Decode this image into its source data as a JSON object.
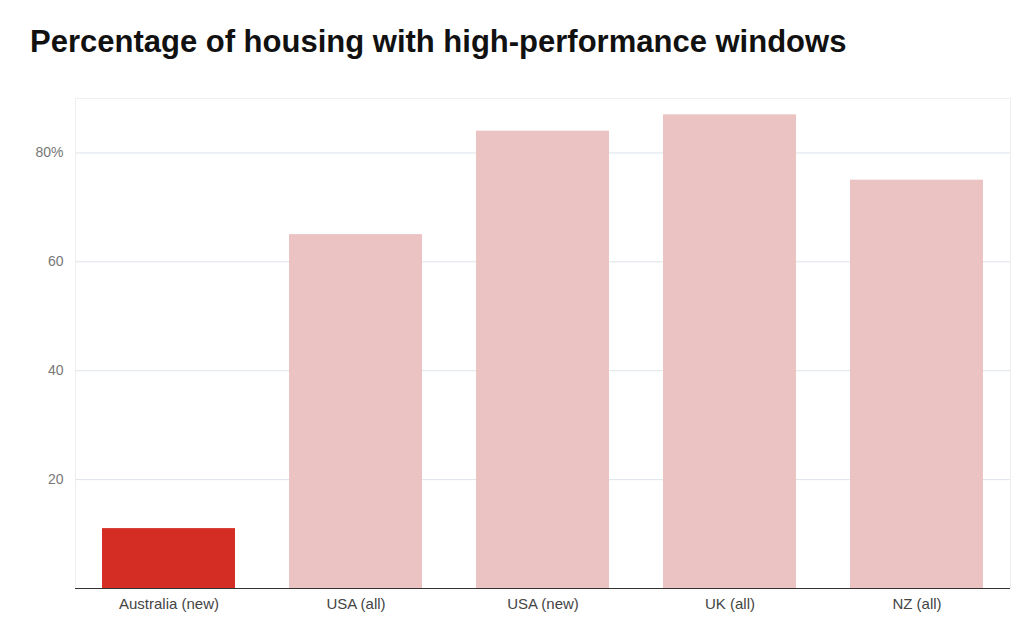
{
  "chart_data": {
    "type": "bar",
    "title": "Percentage of housing with high-performance windows",
    "categories": [
      "Australia (new)",
      "USA (all)",
      "USA (new)",
      "UK (all)",
      "NZ (all)"
    ],
    "values": [
      11,
      65,
      84,
      87,
      75
    ],
    "colors": [
      "#d42e24",
      "#ecc3c3",
      "#ecc3c3",
      "#ecc3c3",
      "#ecc3c3"
    ],
    "ylim": [
      0,
      90
    ],
    "yticks": [
      20,
      40,
      60,
      {
        "value": 80,
        "label": "80%"
      }
    ],
    "grid": true
  }
}
